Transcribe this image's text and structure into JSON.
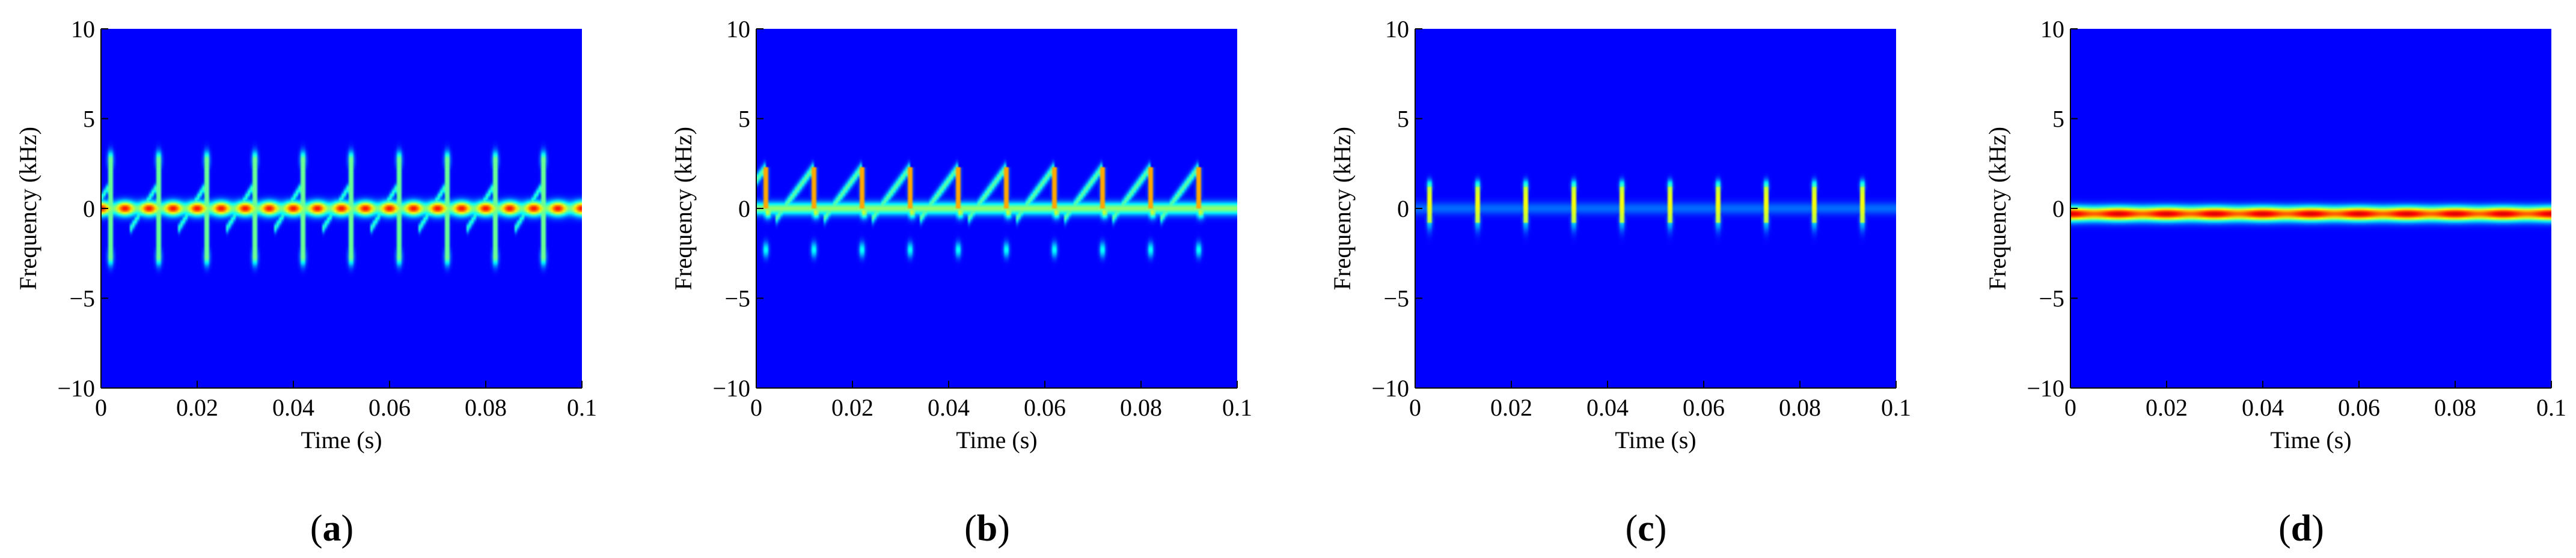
{
  "figure": {
    "panels": [
      {
        "label_open": "(",
        "letter": "a",
        "label_close": ")"
      },
      {
        "label_open": "(",
        "letter": "b",
        "label_close": ")"
      },
      {
        "label_open": "(",
        "letter": "c",
        "label_close": ")"
      },
      {
        "label_open": "(",
        "letter": "d",
        "label_close": ")"
      }
    ]
  },
  "colors": {
    "background": "#00008F",
    "colormap": [
      "#00008F",
      "#0000FF",
      "#00FFFF",
      "#FFFF00",
      "#FF0000",
      "#800000"
    ]
  },
  "chart_data": [
    {
      "type": "heatmap",
      "panel": "a",
      "xlabel": "Time (s)",
      "ylabel": "Frequency (kHz)",
      "xlim": [
        0,
        0.1
      ],
      "ylim": [
        -10,
        10
      ],
      "xticks": [
        0,
        0.02,
        0.04,
        0.06,
        0.08,
        0.1
      ],
      "xtick_labels": [
        "0",
        "0.02",
        "0.04",
        "0.06",
        "0.08",
        "0.1"
      ],
      "yticks": [
        -10,
        -5,
        0,
        5,
        10
      ],
      "ytick_labels": [
        "−10",
        "−5",
        "0",
        "5",
        "10"
      ],
      "grid": false,
      "features": {
        "pulse_times": [
          0.002,
          0.012,
          0.022,
          0.032,
          0.042,
          0.052,
          0.062,
          0.072,
          0.082,
          0.092
        ],
        "pulse_freq_range": [
          -2.7,
          2.7
        ],
        "baseline_freq": 0,
        "baseline_intensity": 0.85,
        "chirp_from": -1.2,
        "chirp_to": 1.4
      }
    },
    {
      "type": "heatmap",
      "panel": "b",
      "xlabel": "Time (s)",
      "ylabel": "Frequency (kHz)",
      "xlim": [
        0,
        0.1
      ],
      "ylim": [
        -10,
        10
      ],
      "xticks": [
        0,
        0.02,
        0.04,
        0.06,
        0.08,
        0.1
      ],
      "xtick_labels": [
        "0",
        "0.02",
        "0.04",
        "0.06",
        "0.08",
        "0.1"
      ],
      "yticks": [
        -10,
        -5,
        0,
        5,
        10
      ],
      "ytick_labels": [
        "−10",
        "−5",
        "0",
        "5",
        "10"
      ],
      "grid": false,
      "features": {
        "pulse_times": [
          0.002,
          0.012,
          0.022,
          0.032,
          0.042,
          0.052,
          0.062,
          0.072,
          0.082,
          0.092
        ],
        "pulse_freq_range": [
          -2.3,
          2.3
        ],
        "baseline_freq": 0,
        "baseline_intensity": 0.6,
        "chirp_from": -0.6,
        "chirp_to": 2.3
      }
    },
    {
      "type": "heatmap",
      "panel": "c",
      "xlabel": "Time (s)",
      "ylabel": "Frequency (kHz)",
      "xlim": [
        0,
        0.1
      ],
      "ylim": [
        -10,
        10
      ],
      "xticks": [
        0,
        0.02,
        0.04,
        0.06,
        0.08,
        0.1
      ],
      "xtick_labels": [
        "0",
        "0.02",
        "0.04",
        "0.06",
        "0.08",
        "0.1"
      ],
      "yticks": [
        -10,
        -5,
        0,
        5,
        10
      ],
      "ytick_labels": [
        "−10",
        "−5",
        "0",
        "5",
        "10"
      ],
      "grid": false,
      "features": {
        "pulse_times": [
          0.003,
          0.013,
          0.023,
          0.033,
          0.043,
          0.053,
          0.063,
          0.073,
          0.083,
          0.093
        ],
        "pulse_freq_range": [
          -1.5,
          1.5
        ],
        "baseline_freq": 0,
        "baseline_intensity": 0.05
      }
    },
    {
      "type": "heatmap",
      "panel": "d",
      "xlabel": "Time (s)",
      "ylabel": "Frequency (kHz)",
      "xlim": [
        0,
        0.1
      ],
      "ylim": [
        -10,
        10
      ],
      "xticks": [
        0,
        0.02,
        0.04,
        0.06,
        0.08,
        0.1
      ],
      "xtick_labels": [
        "0",
        "0.02",
        "0.04",
        "0.06",
        "0.08",
        "0.1"
      ],
      "yticks": [
        -10,
        -5,
        0,
        5,
        10
      ],
      "ytick_labels": [
        "−10",
        "−5",
        "0",
        "5",
        "10"
      ],
      "grid": false,
      "features": {
        "pulse_times": [],
        "baseline_freq": -0.3,
        "baseline_intensity": 0.9,
        "band_halfwidth": 0.7
      }
    }
  ]
}
